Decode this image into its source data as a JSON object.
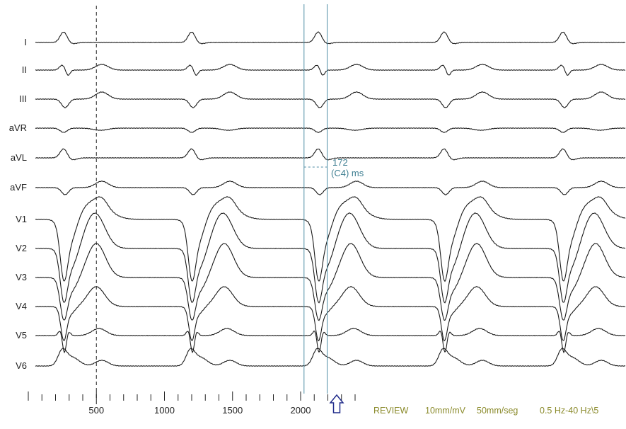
{
  "chart_data": {
    "type": "line",
    "title": "",
    "xlabel": "",
    "ylabel": "",
    "x_unit": "ms",
    "xlim": [
      0,
      2450
    ],
    "xticks": [
      500,
      1000,
      1500,
      2000
    ],
    "grid": false,
    "leads": [
      "I",
      "II",
      "III",
      "aVR",
      "aVL",
      "aVF",
      "V1",
      "V2",
      "V3",
      "V4",
      "V5",
      "V6"
    ],
    "beat_onsets_ms": [
      230,
      1145,
      2055,
      2900,
      3760
    ],
    "beat_interval_ms": 880,
    "cursors": [
      {
        "name": "dashed-cursor",
        "x": 500,
        "style": "dashed"
      },
      {
        "name": "cursor-1",
        "x": 2025,
        "style": "solid"
      },
      {
        "name": "cursor-2",
        "x": 2195,
        "style": "solid"
      }
    ],
    "measurement": {
      "value": "172",
      "label": "(C4) ms",
      "value_ms": 172
    },
    "colors": {
      "trace": "#1a1a1a",
      "cursor": "#4f8ea5",
      "status": "#8a8a2a",
      "arrow": "#1f2a8a"
    }
  },
  "status_bar": {
    "mode": "REVIEW",
    "gain": "10mm/mV",
    "speed": "50mm/seg",
    "filter": "0.5 Hz-40 Hz\\5"
  },
  "arrow_icon": "up-arrow-icon"
}
